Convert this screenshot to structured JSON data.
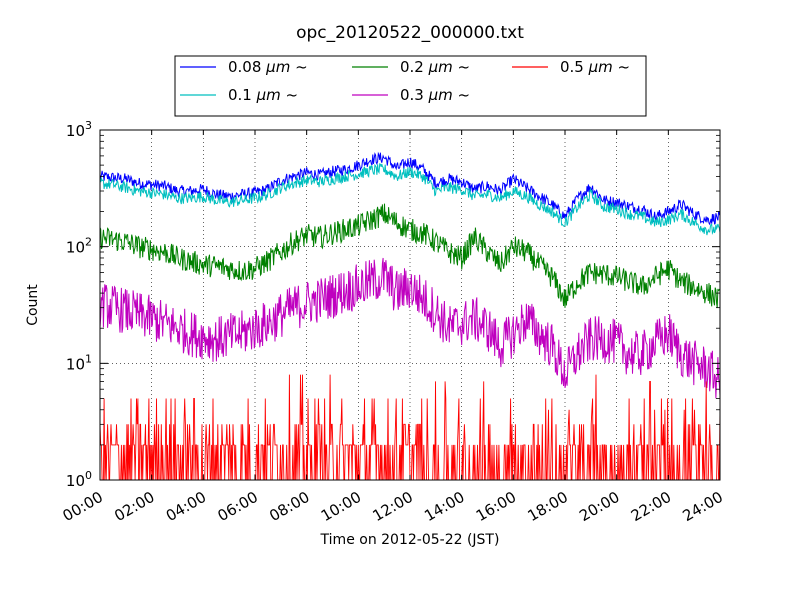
{
  "chart_data": {
    "type": "line",
    "title": "opc_20120522_000000.txt",
    "xlabel": "Time on 2012-05-22 (JST)",
    "ylabel": "Count",
    "yscale": "log",
    "ylim": [
      1,
      1000
    ],
    "xlim": [
      "00:00",
      "24:00"
    ],
    "grid": true,
    "legend_placement": "top-center",
    "x_ticks": [
      "00:00",
      "02:00",
      "04:00",
      "06:00",
      "08:00",
      "10:00",
      "12:00",
      "14:00",
      "16:00",
      "18:00",
      "20:00",
      "22:00",
      "24:00"
    ],
    "y_ticks": [
      {
        "base": "10",
        "exp": "0",
        "value": 1
      },
      {
        "base": "10",
        "exp": "1",
        "value": 10
      },
      {
        "base": "10",
        "exp": "2",
        "value": 100
      },
      {
        "base": "10",
        "exp": "3",
        "value": 1000
      }
    ],
    "x_hours": [
      0,
      0.5,
      1,
      1.5,
      2,
      2.5,
      3,
      3.5,
      4,
      4.5,
      5,
      5.5,
      6,
      6.5,
      7,
      7.5,
      8,
      8.5,
      9,
      9.5,
      10,
      10.5,
      11,
      11.5,
      12,
      12.5,
      13,
      13.5,
      14,
      14.5,
      15,
      15.5,
      16,
      16.5,
      17,
      17.5,
      18,
      18.5,
      19,
      19.5,
      20,
      20.5,
      21,
      21.5,
      22,
      22.5,
      23,
      23.5,
      24
    ],
    "series": [
      {
        "name": "0.08 µm ~",
        "legend_num": "0.08 ",
        "legend_unit": "μm ~",
        "color": "#0000ff",
        "noise": 0.05,
        "values": [
          400,
          390,
          380,
          350,
          340,
          330,
          300,
          300,
          310,
          280,
          270,
          280,
          290,
          310,
          370,
          400,
          430,
          410,
          440,
          460,
          500,
          560,
          580,
          470,
          540,
          460,
          350,
          380,
          360,
          310,
          330,
          300,
          380,
          320,
          270,
          230,
          180,
          260,
          330,
          250,
          240,
          220,
          210,
          180,
          200,
          230,
          190,
          170,
          180
        ]
      },
      {
        "name": "0.1 µm ~",
        "legend_num": "0.1 ",
        "legend_unit": "μm ~",
        "color": "#00bfbf",
        "noise": 0.05,
        "values": [
          350,
          340,
          320,
          300,
          290,
          280,
          260,
          260,
          270,
          250,
          240,
          250,
          260,
          280,
          320,
          350,
          370,
          360,
          380,
          400,
          420,
          450,
          460,
          400,
          440,
          400,
          300,
          320,
          310,
          270,
          280,
          260,
          300,
          270,
          230,
          200,
          160,
          220,
          280,
          220,
          210,
          190,
          180,
          160,
          170,
          190,
          160,
          140,
          140
        ]
      },
      {
        "name": "0.2 µm ~",
        "legend_num": "0.2 ",
        "legend_unit": "μm ~",
        "color": "#008000",
        "noise": 0.1,
        "values": [
          120,
          115,
          110,
          100,
          95,
          90,
          80,
          75,
          70,
          68,
          65,
          62,
          65,
          75,
          90,
          110,
          125,
          120,
          130,
          140,
          150,
          170,
          190,
          160,
          140,
          130,
          110,
          90,
          80,
          120,
          90,
          70,
          100,
          90,
          70,
          55,
          35,
          50,
          60,
          58,
          55,
          50,
          45,
          55,
          65,
          50,
          45,
          40,
          35
        ]
      },
      {
        "name": "0.3 µm ~",
        "legend_num": "0.3 ",
        "legend_unit": "μm ~",
        "color": "#bf00bf",
        "noise": 0.2,
        "values": [
          32,
          30,
          28,
          26,
          24,
          22,
          20,
          18,
          17,
          16,
          17,
          18,
          20,
          22,
          26,
          30,
          33,
          35,
          38,
          42,
          45,
          50,
          55,
          40,
          45,
          36,
          28,
          20,
          22,
          24,
          20,
          14,
          18,
          24,
          18,
          14,
          8,
          12,
          16,
          16,
          15,
          12,
          12,
          15,
          18,
          12,
          10,
          9,
          7
        ]
      },
      {
        "name": "0.5 µm ~",
        "legend_num": "0.5 ",
        "legend_unit": "μm ~",
        "color": "#ff0000",
        "noise": 0,
        "values": [
          2,
          2,
          2,
          2,
          2,
          2,
          2,
          2,
          2,
          2,
          2,
          2,
          2,
          2,
          2,
          2,
          2,
          2,
          2,
          2,
          2,
          2,
          2,
          2,
          2,
          2,
          1,
          1,
          1,
          1,
          1,
          1,
          1,
          1,
          1,
          1,
          1,
          1,
          1,
          1,
          1,
          1,
          1,
          1,
          1,
          1,
          1,
          1,
          1
        ]
      }
    ]
  }
}
